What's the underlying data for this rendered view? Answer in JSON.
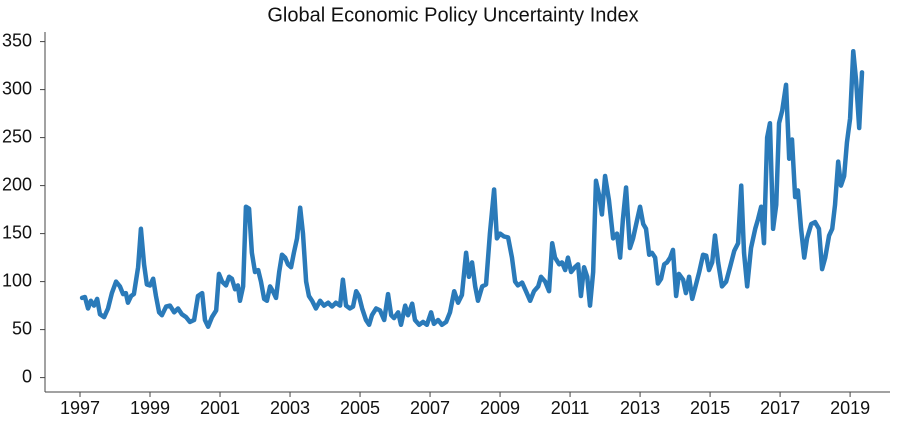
{
  "chart_data": {
    "type": "line",
    "title": "Global Economic Policy Uncertainty Index",
    "xlim": [
      1996,
      2020.14
    ],
    "xticks": [
      1997,
      1999,
      2001,
      2003,
      2005,
      2007,
      2009,
      2011,
      2013,
      2015,
      2017,
      2019
    ],
    "ylim": [
      -15,
      360
    ],
    "yticks": [
      0,
      50,
      100,
      150,
      200,
      250,
      300,
      350
    ],
    "series": [
      {
        "color": "#2a7ab9",
        "x": [
          1997.06,
          1997.14,
          1997.23,
          1997.31,
          1997.4,
          1997.49,
          1997.57,
          1997.69,
          1997.8,
          1997.91,
          1998.03,
          1998.14,
          1998.23,
          1998.31,
          1998.37,
          1998.46,
          1998.54,
          1998.66,
          1998.74,
          1998.83,
          1998.91,
          1999.0,
          1999.09,
          1999.17,
          1999.26,
          1999.34,
          1999.46,
          1999.57,
          1999.69,
          1999.8,
          1999.91,
          2000.03,
          2000.14,
          2000.26,
          2000.37,
          2000.49,
          2000.57,
          2000.66,
          2000.77,
          2000.89,
          2000.97,
          2001.06,
          2001.17,
          2001.26,
          2001.34,
          2001.43,
          2001.51,
          2001.57,
          2001.66,
          2001.74,
          2001.83,
          2001.91,
          2002.0,
          2002.09,
          2002.17,
          2002.26,
          2002.34,
          2002.43,
          2002.51,
          2002.6,
          2002.69,
          2002.77,
          2002.86,
          2002.94,
          2003.03,
          2003.11,
          2003.2,
          2003.29,
          2003.37,
          2003.46,
          2003.54,
          2003.63,
          2003.74,
          2003.86,
          2003.97,
          2004.09,
          2004.2,
          2004.31,
          2004.43,
          2004.51,
          2004.6,
          2004.71,
          2004.8,
          2004.89,
          2004.97,
          2005.06,
          2005.17,
          2005.26,
          2005.34,
          2005.46,
          2005.57,
          2005.69,
          2005.8,
          2005.89,
          2005.97,
          2006.09,
          2006.17,
          2006.29,
          2006.37,
          2006.49,
          2006.57,
          2006.69,
          2006.8,
          2006.91,
          2007.03,
          2007.11,
          2007.23,
          2007.34,
          2007.46,
          2007.57,
          2007.69,
          2007.8,
          2007.91,
          2008.03,
          2008.11,
          2008.2,
          2008.29,
          2008.37,
          2008.49,
          2008.6,
          2008.71,
          2008.83,
          2008.91,
          2009.0,
          2009.11,
          2009.23,
          2009.34,
          2009.43,
          2009.51,
          2009.63,
          2009.74,
          2009.86,
          2009.97,
          2010.09,
          2010.17,
          2010.29,
          2010.4,
          2010.49,
          2010.57,
          2010.69,
          2010.77,
          2010.86,
          2010.94,
          2011.03,
          2011.14,
          2011.23,
          2011.31,
          2011.4,
          2011.49,
          2011.57,
          2011.66,
          2011.74,
          2011.83,
          2011.91,
          2012.0,
          2012.11,
          2012.23,
          2012.34,
          2012.43,
          2012.51,
          2012.6,
          2012.71,
          2012.8,
          2012.89,
          2013.0,
          2013.09,
          2013.17,
          2013.26,
          2013.34,
          2013.43,
          2013.51,
          2013.6,
          2013.69,
          2013.77,
          2013.86,
          2013.94,
          2014.03,
          2014.11,
          2014.23,
          2014.31,
          2014.4,
          2014.49,
          2014.57,
          2014.69,
          2014.8,
          2014.89,
          2014.97,
          2015.06,
          2015.14,
          2015.23,
          2015.34,
          2015.46,
          2015.57,
          2015.69,
          2015.8,
          2015.89,
          2015.97,
          2016.06,
          2016.17,
          2016.29,
          2016.37,
          2016.46,
          2016.54,
          2016.63,
          2016.71,
          2016.8,
          2016.89,
          2016.97,
          2017.06,
          2017.17,
          2017.26,
          2017.34,
          2017.43,
          2017.51,
          2017.6,
          2017.69,
          2017.77,
          2017.89,
          2018.0,
          2018.11,
          2018.2,
          2018.29,
          2018.4,
          2018.49,
          2018.57,
          2018.66,
          2018.74,
          2018.83,
          2018.91,
          2019.0,
          2019.09,
          2019.17,
          2019.26,
          2019.34
        ],
        "values": [
          83,
          84,
          72,
          80,
          75,
          82,
          66,
          63,
          72,
          88,
          100,
          95,
          87,
          88,
          78,
          85,
          87,
          115,
          155,
          118,
          97,
          96,
          103,
          85,
          68,
          65,
          74,
          75,
          68,
          72,
          66,
          63,
          58,
          60,
          85,
          88,
          60,
          53,
          63,
          70,
          108,
          100,
          96,
          105,
          103,
          92,
          96,
          80,
          95,
          178,
          176,
          130,
          110,
          112,
          100,
          82,
          80,
          95,
          90,
          83,
          110,
          128,
          125,
          118,
          115,
          130,
          145,
          177,
          150,
          100,
          85,
          80,
          72,
          80,
          75,
          78,
          74,
          78,
          75,
          102,
          75,
          72,
          74,
          90,
          85,
          72,
          60,
          55,
          65,
          72,
          70,
          60,
          87,
          65,
          62,
          68,
          55,
          75,
          65,
          77,
          60,
          55,
          58,
          55,
          68,
          56,
          60,
          55,
          58,
          68,
          90,
          78,
          86,
          130,
          105,
          120,
          95,
          80,
          95,
          97,
          150,
          196,
          145,
          150,
          147,
          146,
          125,
          100,
          96,
          99,
          90,
          80,
          90,
          95,
          105,
          100,
          90,
          140,
          125,
          118,
          120,
          112,
          125,
          110,
          115,
          118,
          85,
          115,
          105,
          75,
          110,
          205,
          190,
          170,
          210,
          185,
          145,
          150,
          125,
          165,
          198,
          135,
          145,
          160,
          178,
          160,
          155,
          128,
          130,
          125,
          98,
          103,
          118,
          120,
          125,
          133,
          85,
          108,
          102,
          88,
          105,
          82,
          93,
          110,
          128,
          127,
          112,
          120,
          148,
          120,
          95,
          100,
          115,
          132,
          140,
          200,
          130,
          95,
          135,
          155,
          165,
          178,
          140,
          250,
          265,
          155,
          180,
          265,
          278,
          305,
          228,
          248,
          188,
          195,
          155,
          125,
          145,
          160,
          162,
          155,
          113,
          125,
          148,
          155,
          180,
          225,
          200,
          210,
          245,
          270,
          340,
          310,
          260,
          318
        ]
      }
    ]
  }
}
